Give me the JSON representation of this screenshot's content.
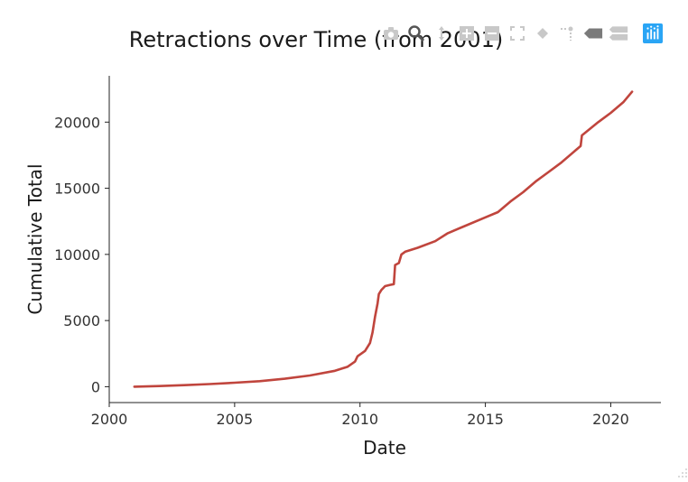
{
  "chart_data": {
    "type": "line",
    "title": "Retractions over Time (from 2001)",
    "xlabel": "Date",
    "ylabel": "Cumulative Total",
    "xlim": [
      2000,
      2022
    ],
    "ylim": [
      -1200,
      23500
    ],
    "x_ticks": [
      2000,
      2005,
      2010,
      2015,
      2020
    ],
    "y_ticks": [
      0,
      5000,
      10000,
      15000,
      20000
    ],
    "grid": false,
    "line_color": "#c0453d",
    "series": [
      {
        "x": [
          2001.0,
          2002.0,
          2003.0,
          2004.0,
          2005.0,
          2006.0,
          2007.0,
          2008.0,
          2009.0,
          2009.5,
          2009.8,
          2009.9,
          2010.2,
          2010.4,
          2010.5,
          2010.6,
          2010.7,
          2010.75,
          2010.85,
          2011.0,
          2011.2,
          2011.35,
          2011.4,
          2011.55,
          2011.65,
          2011.8,
          2012.3,
          2013.0,
          2013.5,
          2014.0,
          2015.0,
          2015.5,
          2016.0,
          2016.5,
          2017.0,
          2017.5,
          2018.0,
          2018.8,
          2018.85,
          2019.5,
          2020.0,
          2020.5,
          2020.85
        ],
        "y": [
          0,
          50,
          120,
          200,
          300,
          420,
          600,
          850,
          1200,
          1500,
          1900,
          2300,
          2700,
          3300,
          4100,
          5300,
          6300,
          7000,
          7300,
          7600,
          7700,
          7750,
          9200,
          9350,
          10000,
          10200,
          10500,
          11000,
          11600,
          12000,
          12800,
          13200,
          14000,
          14700,
          15500,
          16200,
          16900,
          18200,
          19000,
          20000,
          20700,
          21500,
          22300
        ]
      }
    ]
  },
  "modebar": {
    "icons": [
      "camera-icon",
      "zoom-icon",
      "pan-icon",
      "zoom-in-icon",
      "zoom-out-icon",
      "autoscale-icon",
      "reset-axes-icon",
      "spike-lines-icon",
      "hover-closest-icon",
      "hover-compare-icon",
      "plotly-logo-icon"
    ]
  }
}
